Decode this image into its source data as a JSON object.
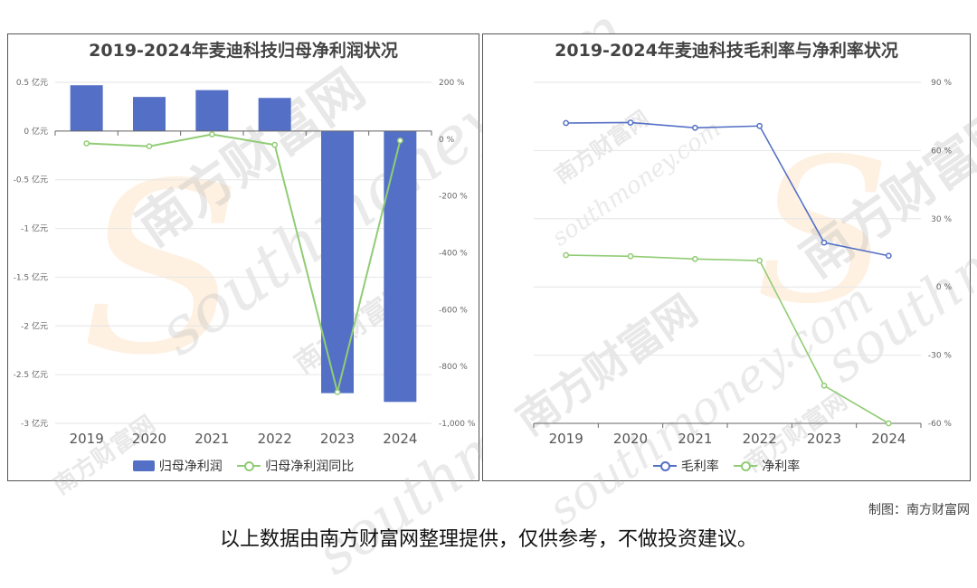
{
  "watermark": {
    "cn": "南方财富网",
    "en": "southmoney.com",
    "s_glyph": "S"
  },
  "credit": "制图：南方财富网",
  "footer": "以上数据由南方财富网整理提供，仅供参考，不做投资建议。",
  "chart_data": [
    {
      "type": "bar",
      "title": "2019-2024年麦迪科技归母净利润状况",
      "categories": [
        "2019",
        "2020",
        "2021",
        "2022",
        "2023",
        "2024"
      ],
      "y_unit": "亿元",
      "ylim": [
        -3,
        0.5
      ],
      "yticks": [
        0.5,
        0,
        -0.5,
        -1,
        -1.5,
        -2,
        -2.5,
        -3
      ],
      "ytick_labels": [
        "0.5 亿元",
        "0 亿元",
        "-0.5 亿元",
        "-1 亿元",
        "-1.5 亿元",
        "-2 亿元",
        "-2.5 亿元",
        "-3 亿元"
      ],
      "y2lim": [
        -1000,
        200
      ],
      "y2ticks": [
        200,
        0,
        -200,
        -400,
        -600,
        -800,
        -1000
      ],
      "y2tick_labels": [
        "200 %",
        "0 %",
        "-200 %",
        "-400 %",
        "-600 %",
        "-800 %",
        "-1,000 %"
      ],
      "series": [
        {
          "name": "归母净利润",
          "type": "bar",
          "axis": "left",
          "color": "#5470c6",
          "values": [
            0.47,
            0.35,
            0.42,
            0.34,
            -2.69,
            -2.78
          ]
        },
        {
          "name": "归母净利润同比",
          "type": "line",
          "axis": "right",
          "color": "#91cc75",
          "values": [
            -15,
            -25,
            17,
            -20,
            -890,
            -5
          ]
        }
      ],
      "legend": "bottom",
      "grid": true
    },
    {
      "type": "line",
      "title": "2019-2024年麦迪科技毛利率与净利率状况",
      "categories": [
        "2019",
        "2020",
        "2021",
        "2022",
        "2023",
        "2024"
      ],
      "y_side": "right",
      "ylim": [
        -60,
        90
      ],
      "yticks": [
        90,
        60,
        30,
        0,
        -30,
        -60
      ],
      "ytick_labels": [
        "90 %",
        "60 %",
        "30 %",
        "0 %",
        "-30 %",
        "-60 %"
      ],
      "series": [
        {
          "name": "毛利率",
          "color": "#5470c6",
          "values": [
            72.1,
            72.3,
            70.0,
            70.8,
            19.5,
            13.7
          ]
        },
        {
          "name": "净利率",
          "color": "#91cc75",
          "values": [
            14.0,
            13.5,
            12.3,
            11.6,
            -43.4,
            -60.0
          ]
        }
      ],
      "legend": "bottom",
      "grid": true
    }
  ]
}
